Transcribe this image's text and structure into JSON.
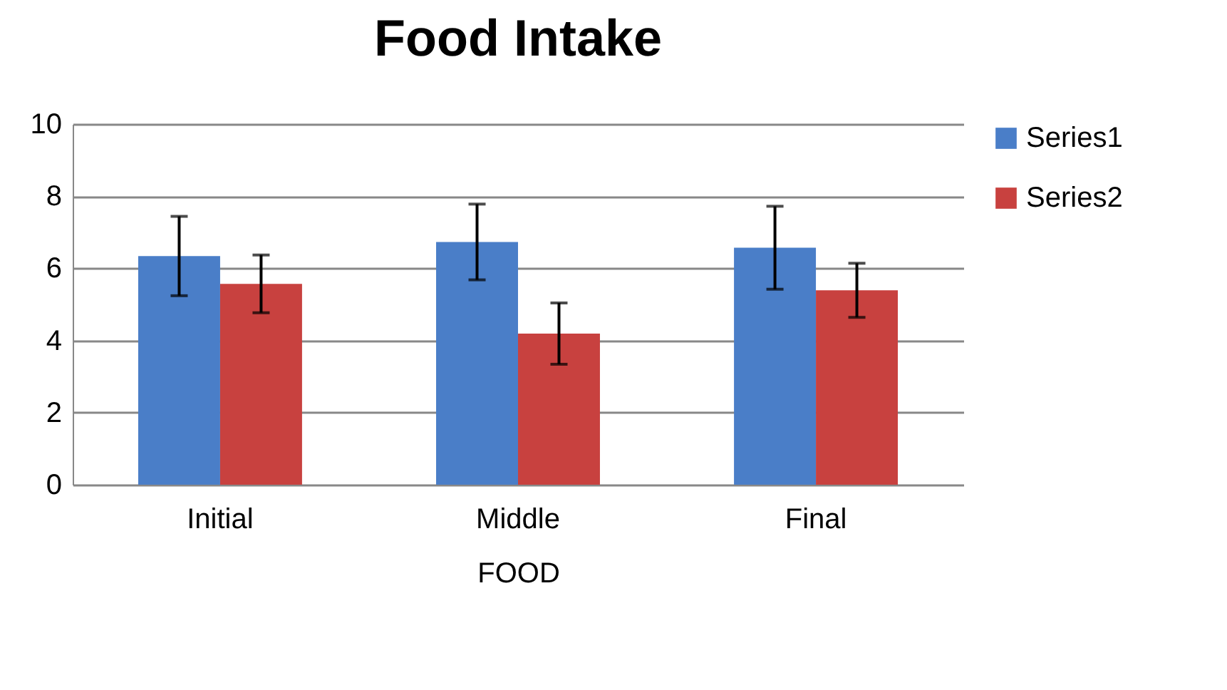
{
  "chart_data": {
    "type": "bar",
    "title": "Food Intake",
    "xlabel": "FOOD",
    "categories": [
      "Initial",
      "Middle",
      "Final"
    ],
    "series": [
      {
        "name": "Series1",
        "color": "#4a7ec8",
        "values": [
          6.34,
          6.73,
          6.57
        ],
        "errors": [
          1.1,
          1.05,
          1.15
        ]
      },
      {
        "name": "Series2",
        "color": "#c8413f",
        "values": [
          5.57,
          4.19,
          5.39
        ],
        "errors": [
          0.8,
          0.85,
          0.75
        ]
      }
    ],
    "ylim": [
      0,
      10
    ],
    "yticks": [
      0,
      2,
      4,
      6,
      8,
      10
    ],
    "grid": "y",
    "legend": "right"
  }
}
